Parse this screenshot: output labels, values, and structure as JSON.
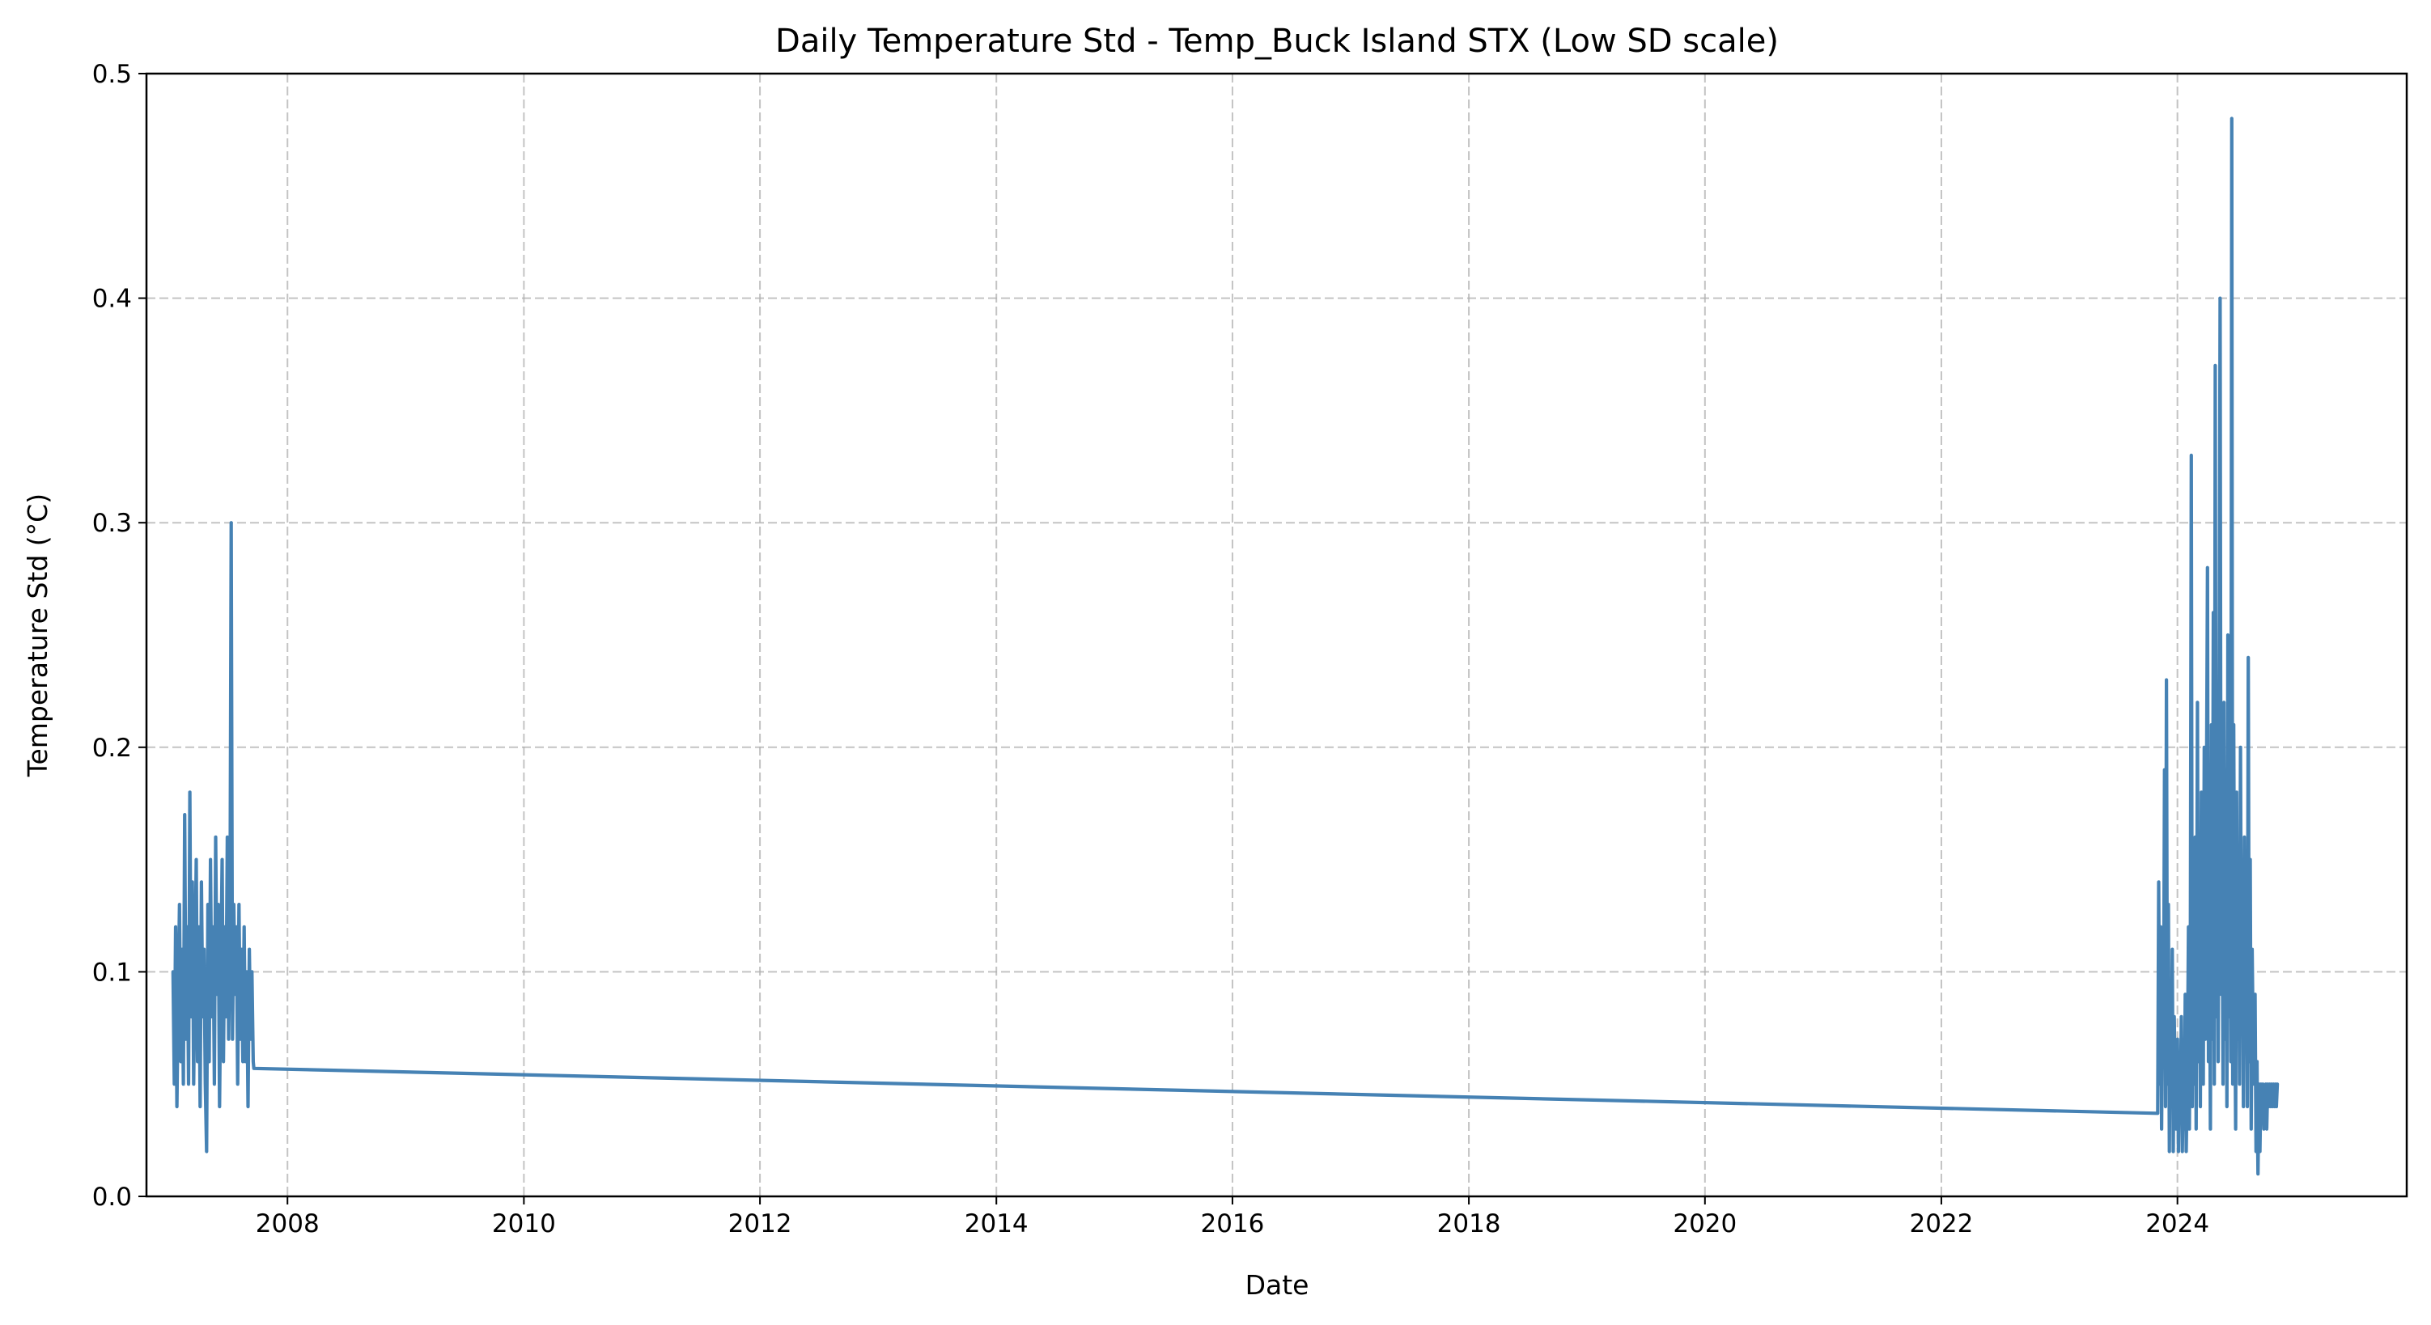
{
  "chart_data": {
    "type": "line",
    "title": "Daily Temperature Std - Temp_Buck Island STX (Low SD scale)",
    "xlabel": "Date",
    "ylabel": "Temperature Std (°C)",
    "xlim": [
      "2006-10-22",
      "2025-12-10"
    ],
    "ylim": [
      0.0,
      0.5
    ],
    "x_ticks": [
      "2008",
      "2010",
      "2012",
      "2014",
      "2016",
      "2018",
      "2020",
      "2022",
      "2024"
    ],
    "y_ticks": [
      "0.0",
      "0.1",
      "0.2",
      "0.3",
      "0.4",
      "0.5"
    ],
    "grid": true,
    "line_color": "#4682b4",
    "series": [
      {
        "x": [
          "2007-01-12",
          "2007-01-16",
          "2007-01-20",
          "2007-01-24",
          "2007-01-28",
          "2007-02-01",
          "2007-02-05",
          "2007-02-09",
          "2007-02-13",
          "2007-02-17",
          "2007-02-21",
          "2007-02-25",
          "2007-03-01",
          "2007-03-05",
          "2007-03-09",
          "2007-03-13",
          "2007-03-17",
          "2007-03-21",
          "2007-03-25",
          "2007-03-29",
          "2007-04-02",
          "2007-04-06",
          "2007-04-10",
          "2007-04-14",
          "2007-04-18",
          "2007-04-22",
          "2007-04-26",
          "2007-04-30",
          "2007-05-04",
          "2007-05-08",
          "2007-05-12",
          "2007-05-16",
          "2007-05-20",
          "2007-05-24",
          "2007-05-28",
          "2007-06-01",
          "2007-06-05",
          "2007-06-09",
          "2007-06-13",
          "2007-06-17",
          "2007-06-21",
          "2007-06-25",
          "2007-06-29",
          "2007-07-03",
          "2007-07-07",
          "2007-07-11",
          "2007-07-15",
          "2007-07-19",
          "2007-07-23",
          "2007-07-27",
          "2007-07-31",
          "2007-08-04",
          "2007-08-08",
          "2007-08-12",
          "2007-08-16",
          "2007-08-20",
          "2007-08-24",
          "2007-08-28",
          "2007-09-01",
          "2007-09-05",
          "2007-09-09",
          "2007-09-13",
          "2007-09-17",
          "2007-09-19",
          "2023-11-01",
          "2023-11-04",
          "2023-11-07",
          "2023-11-10",
          "2023-11-13",
          "2023-11-16",
          "2023-11-19",
          "2023-11-22",
          "2023-11-25",
          "2023-11-28",
          "2023-12-01",
          "2023-12-04",
          "2023-12-07",
          "2023-12-10",
          "2023-12-13",
          "2023-12-16",
          "2023-12-19",
          "2023-12-22",
          "2023-12-25",
          "2023-12-28",
          "2024-01-01",
          "2024-01-04",
          "2024-01-07",
          "2024-01-10",
          "2024-01-13",
          "2024-01-16",
          "2024-01-19",
          "2024-01-22",
          "2024-01-25",
          "2024-01-28",
          "2024-02-01",
          "2024-02-04",
          "2024-02-07",
          "2024-02-10",
          "2024-02-13",
          "2024-02-16",
          "2024-02-19",
          "2024-02-22",
          "2024-02-25",
          "2024-02-28",
          "2024-03-03",
          "2024-03-06",
          "2024-03-09",
          "2024-03-12",
          "2024-03-15",
          "2024-03-18",
          "2024-03-21",
          "2024-03-24",
          "2024-03-27",
          "2024-03-30",
          "2024-04-03",
          "2024-04-06",
          "2024-04-09",
          "2024-04-12",
          "2024-04-15",
          "2024-04-18",
          "2024-04-21",
          "2024-04-24",
          "2024-04-27",
          "2024-04-30",
          "2024-05-03",
          "2024-05-06",
          "2024-05-09",
          "2024-05-12",
          "2024-05-15",
          "2024-05-18",
          "2024-05-21",
          "2024-05-24",
          "2024-05-27",
          "2024-05-30",
          "2024-06-02",
          "2024-06-05",
          "2024-06-08",
          "2024-06-11",
          "2024-06-14",
          "2024-06-17",
          "2024-06-20",
          "2024-06-23",
          "2024-06-26",
          "2024-06-29",
          "2024-07-02",
          "2024-07-05",
          "2024-07-08",
          "2024-07-11",
          "2024-07-14",
          "2024-07-17",
          "2024-07-20",
          "2024-07-23",
          "2024-07-26",
          "2024-07-29",
          "2024-08-01",
          "2024-08-04",
          "2024-08-07",
          "2024-08-10",
          "2024-08-13",
          "2024-08-16",
          "2024-08-19",
          "2024-08-22",
          "2024-08-25",
          "2024-08-28",
          "2024-08-31",
          "2024-09-03",
          "2024-09-06",
          "2024-09-09",
          "2024-09-12",
          "2024-09-15",
          "2024-09-18",
          "2024-09-21",
          "2024-09-24",
          "2024-09-27",
          "2024-09-30",
          "2024-10-03",
          "2024-10-06",
          "2024-10-09",
          "2024-10-12",
          "2024-10-15",
          "2024-10-18",
          "2024-10-21",
          "2024-10-24",
          "2024-10-27",
          "2024-10-30",
          "2024-11-02",
          "2024-11-05"
        ],
        "y": [
          0.1,
          0.05,
          0.12,
          0.04,
          0.09,
          0.13,
          0.06,
          0.11,
          0.05,
          0.17,
          0.07,
          0.12,
          0.05,
          0.18,
          0.08,
          0.14,
          0.05,
          0.1,
          0.15,
          0.06,
          0.12,
          0.04,
          0.14,
          0.08,
          0.11,
          0.05,
          0.02,
          0.13,
          0.06,
          0.15,
          0.08,
          0.12,
          0.05,
          0.16,
          0.09,
          0.13,
          0.04,
          0.1,
          0.15,
          0.06,
          0.12,
          0.08,
          0.16,
          0.07,
          0.11,
          0.3,
          0.07,
          0.13,
          0.09,
          0.12,
          0.05,
          0.13,
          0.07,
          0.11,
          0.06,
          0.12,
          0.06,
          0.1,
          0.04,
          0.11,
          0.07,
          0.1,
          0.06,
          0.057,
          0.037,
          0.14,
          0.05,
          0.12,
          0.03,
          0.1,
          0.07,
          0.19,
          0.04,
          0.23,
          0.05,
          0.13,
          0.02,
          0.09,
          0.04,
          0.11,
          0.02,
          0.08,
          0.05,
          0.03,
          0.07,
          0.02,
          0.06,
          0.04,
          0.08,
          0.02,
          0.05,
          0.03,
          0.09,
          0.02,
          0.06,
          0.12,
          0.03,
          0.1,
          0.33,
          0.04,
          0.12,
          0.05,
          0.16,
          0.03,
          0.22,
          0.06,
          0.14,
          0.04,
          0.18,
          0.08,
          0.05,
          0.2,
          0.07,
          0.15,
          0.28,
          0.06,
          0.13,
          0.03,
          0.21,
          0.07,
          0.26,
          0.05,
          0.37,
          0.08,
          0.18,
          0.06,
          0.23,
          0.4,
          0.09,
          0.15,
          0.05,
          0.22,
          0.07,
          0.19,
          0.04,
          0.25,
          0.08,
          0.17,
          0.06,
          0.48,
          0.05,
          0.21,
          0.1,
          0.03,
          0.18,
          0.07,
          0.14,
          0.05,
          0.2,
          0.08,
          0.13,
          0.04,
          0.16,
          0.07,
          0.12,
          0.04,
          0.24,
          0.06,
          0.15,
          0.03,
          0.11,
          0.07,
          0.05,
          0.09,
          0.02,
          0.06,
          0.01,
          0.05,
          0.02,
          0.05,
          0.04,
          0.05,
          0.03,
          0.04,
          0.05,
          0.03,
          0.05,
          0.04,
          0.05,
          0.04,
          0.05,
          0.04,
          0.05,
          0.04,
          0.05,
          0.04,
          0.05
        ]
      }
    ]
  }
}
